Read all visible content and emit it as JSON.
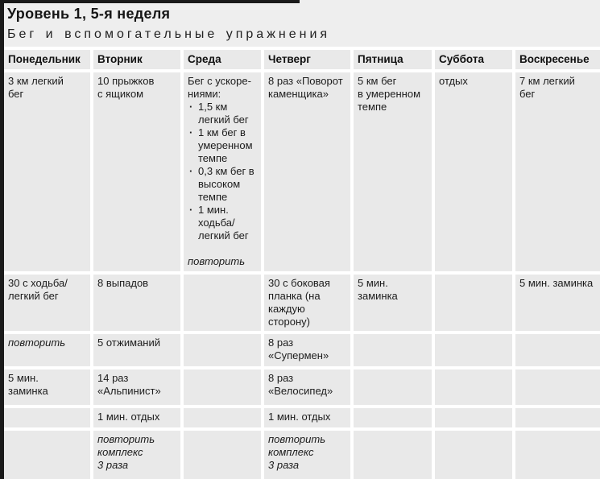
{
  "page": {
    "title": "Уровень 1, 5-я неделя",
    "subtitle": "Бег и вспомогательные упражнения"
  },
  "colors": {
    "page_bg": "#eeeeee",
    "cell_bg": "#e9e9e9",
    "gap": "#ffffff",
    "text": "#1c1c1c",
    "rule_bar": "#1a1a1a"
  },
  "table": {
    "headers": [
      "Понедельник",
      "Вторник",
      "Среда",
      "Четверг",
      "Пятница",
      "Суббота",
      "Воскресенье"
    ],
    "rows": [
      [
        [
          {
            "t": "text",
            "v": "3 км легкий\nбег"
          }
        ],
        [
          {
            "t": "text",
            "v": "10 прыжков\nс ящиком"
          }
        ],
        [
          {
            "t": "text",
            "v": "Бег с ускоре-\nниями:"
          },
          {
            "t": "bullets",
            "v": [
              "1,5 км\nлегкий бег",
              "1 км бег в\nумеренном\nтемпе",
              "0,3 км бег в\nвысоком\nтемпе",
              "1 мин.\nходьба/\nлегкий бег"
            ]
          },
          {
            "t": "italic_spaced",
            "v": "повторить"
          }
        ],
        [
          {
            "t": "text",
            "v": "8 раз «Поворот\nкаменщика»"
          }
        ],
        [
          {
            "t": "text",
            "v": "5 км бег\nв умеренном\nтемпе"
          }
        ],
        [
          {
            "t": "text",
            "v": "отдых"
          }
        ],
        [
          {
            "t": "text",
            "v": "7 км легкий\nбег"
          }
        ]
      ],
      [
        [
          {
            "t": "text",
            "v": "30 с ходьба/\nлегкий бег"
          }
        ],
        [
          {
            "t": "text",
            "v": "8 выпадов"
          }
        ],
        [],
        [
          {
            "t": "text",
            "v": "30 с боковая\nпланка (на\nкаждую\nсторону)"
          }
        ],
        [
          {
            "t": "text",
            "v": "5 мин.\nзаминка"
          }
        ],
        [],
        [
          {
            "t": "text",
            "v": "5 мин. заминка"
          }
        ]
      ],
      [
        [
          {
            "t": "italic",
            "v": "повторить"
          }
        ],
        [
          {
            "t": "text",
            "v": "5 отжиманий"
          }
        ],
        [],
        [
          {
            "t": "text",
            "v": "8 раз\n«Супермен»"
          }
        ],
        [],
        [],
        []
      ],
      [
        [
          {
            "t": "text",
            "v": "5 мин.\nзаминка"
          }
        ],
        [
          {
            "t": "text",
            "v": "14 раз\n«Альпинист»"
          }
        ],
        [],
        [
          {
            "t": "text",
            "v": "8 раз\n«Велосипед»"
          }
        ],
        [],
        [],
        []
      ],
      [
        [],
        [
          {
            "t": "text",
            "v": "1 мин. отдых"
          }
        ],
        [],
        [
          {
            "t": "text",
            "v": "1 мин. отдых"
          }
        ],
        [],
        [],
        []
      ],
      [
        [],
        [
          {
            "t": "italic",
            "v": "повторить\nкомплекс\n3 раза"
          }
        ],
        [],
        [
          {
            "t": "italic",
            "v": "повторить\nкомплекс\n3 раза"
          }
        ],
        [],
        [],
        []
      ]
    ]
  }
}
